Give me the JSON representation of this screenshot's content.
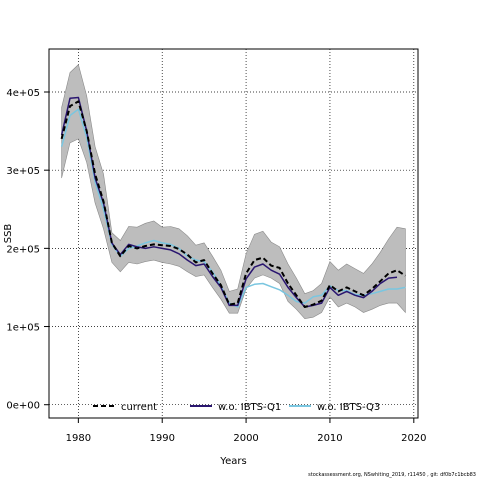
{
  "chart_data": {
    "type": "line",
    "title": "",
    "xlabel": "Years",
    "ylabel": "SSB",
    "xlim": [
      1976.5,
      2020.5
    ],
    "ylim": [
      -17000,
      455000
    ],
    "x_ticks": [
      1980,
      1990,
      2000,
      2010,
      2020
    ],
    "y_ticks": [
      0,
      100000,
      200000,
      300000,
      400000
    ],
    "y_tick_labels": [
      "0e+00",
      "1e+05",
      "2e+05",
      "3e+05",
      "4e+05"
    ],
    "grid": true,
    "legend_position": "bottom",
    "x": [
      1978,
      1979,
      1980,
      1981,
      1982,
      1983,
      1984,
      1985,
      1986,
      1987,
      1988,
      1989,
      1990,
      1991,
      1992,
      1993,
      1994,
      1995,
      1996,
      1997,
      1998,
      1999,
      2000,
      2001,
      2002,
      2003,
      2004,
      2005,
      2006,
      2007,
      2008,
      2009,
      2010,
      2011,
      2012,
      2013,
      2014,
      2015,
      2016,
      2017,
      2018,
      2019
    ],
    "confidence_band": {
      "lower": [
        290000,
        335000,
        340000,
        310000,
        258000,
        225000,
        182000,
        170000,
        182000,
        180000,
        183000,
        185000,
        182000,
        180000,
        177000,
        170000,
        164000,
        166000,
        150000,
        135000,
        117000,
        117000,
        148000,
        162000,
        166000,
        162000,
        155000,
        132000,
        122000,
        110000,
        112000,
        118000,
        138000,
        125000,
        130000,
        125000,
        118000,
        122000,
        127000,
        130000,
        130000,
        118000
      ],
      "upper": [
        380000,
        425000,
        435000,
        395000,
        330000,
        295000,
        220000,
        210000,
        228000,
        227000,
        232000,
        235000,
        227000,
        228000,
        225000,
        216000,
        204000,
        207000,
        190000,
        172000,
        145000,
        148000,
        193000,
        218000,
        222000,
        208000,
        202000,
        180000,
        162000,
        142000,
        146000,
        155000,
        183000,
        172000,
        180000,
        174000,
        168000,
        180000,
        195000,
        212000,
        227000,
        225000
      ]
    },
    "series": [
      {
        "name": "current",
        "color": "#000000",
        "style": "dashed",
        "values": [
          340000,
          382000,
          388000,
          350000,
          295000,
          260000,
          207000,
          190000,
          203000,
          200000,
          203000,
          205000,
          204000,
          203000,
          199000,
          192000,
          182000,
          185000,
          168000,
          153000,
          128000,
          130000,
          168000,
          185000,
          188000,
          178000,
          175000,
          155000,
          140000,
          125000,
          128000,
          133000,
          153000,
          145000,
          150000,
          145000,
          140000,
          148000,
          158000,
          168000,
          172000,
          165000
        ]
      },
      {
        "name": "w.o. IBTS-Q1",
        "color": "#2a1670",
        "style": "solid",
        "values": [
          345000,
          392000,
          393000,
          350000,
          290000,
          258000,
          207000,
          192000,
          205000,
          202000,
          200000,
          202000,
          200000,
          198000,
          193000,
          185000,
          178000,
          180000,
          164000,
          150000,
          127000,
          127000,
          161000,
          176000,
          180000,
          172000,
          167000,
          150000,
          137000,
          125000,
          127000,
          130000,
          150000,
          140000,
          145000,
          140000,
          137000,
          145000,
          155000,
          162000,
          163000,
          null
        ]
      },
      {
        "name": "w.o. IBTS-Q3",
        "color": "#7ac6e0",
        "style": "solid",
        "values": [
          330000,
          370000,
          378000,
          342000,
          285000,
          250000,
          205000,
          190000,
          200000,
          203000,
          207000,
          210000,
          207000,
          205000,
          200000,
          190000,
          185000,
          183000,
          170000,
          152000,
          130000,
          125000,
          150000,
          154000,
          155000,
          151000,
          147000,
          140000,
          132000,
          130000,
          138000,
          140000,
          152000,
          146000,
          146000,
          141000,
          140000,
          142000,
          145000,
          148000,
          148000,
          150000
        ]
      }
    ]
  },
  "footer_text": "stockassessment.org, NSwhiting_2019, r11450 ,  git: df0b7c1bcb83"
}
